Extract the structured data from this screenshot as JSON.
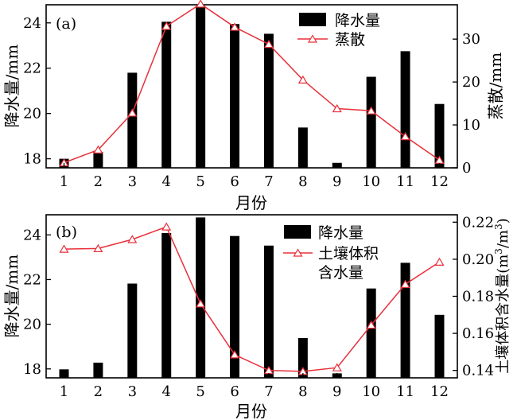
{
  "chart_data": [
    {
      "type": "bar",
      "panel_label": "(a)",
      "categories": [
        "1",
        "2",
        "3",
        "4",
        "5",
        "6",
        "7",
        "8",
        "9",
        "10",
        "11",
        "12"
      ],
      "xlabel": "月份",
      "ylabel": "降水量/mm",
      "ylim": [
        17.6,
        24.8
      ],
      "yticks": [
        "18",
        "20",
        "22",
        "24"
      ],
      "y2label": "蒸散/mm",
      "y2lim": [
        0,
        38
      ],
      "y2ticks": [
        "0",
        "10",
        "20",
        "30"
      ],
      "series": [
        {
          "name": "降水量",
          "kind": "bar",
          "axis": "left",
          "color": "#000000",
          "values": [
            18.0,
            18.3,
            21.8,
            24.05,
            24.75,
            23.95,
            23.52,
            19.38,
            17.82,
            21.62,
            22.75,
            20.42
          ]
        },
        {
          "name": "蒸散",
          "kind": "line",
          "axis": "right",
          "color": "#e8303a",
          "marker": "open-triangle",
          "values": [
            1.2,
            4.2,
            12.8,
            33.0,
            38.2,
            32.8,
            28.8,
            20.5,
            13.8,
            13.3,
            7.3,
            1.8
          ]
        }
      ],
      "legend_position": "top-right",
      "grid": false
    },
    {
      "type": "bar",
      "panel_label": "(b)",
      "categories": [
        "1",
        "2",
        "3",
        "4",
        "5",
        "6",
        "7",
        "8",
        "9",
        "10",
        "11",
        "12"
      ],
      "xlabel": "月份",
      "ylabel": "降水量/mm",
      "ylim": [
        17.6,
        24.9
      ],
      "yticks": [
        "18",
        "20",
        "22",
        "24"
      ],
      "y2label_main": "土壤体积含水量",
      "y2label_unit": "(m",
      "y2label_sup1": "3",
      "y2label_mid": "/m",
      "y2label_sup2": "3",
      "y2label_end": ")",
      "y2lim": [
        0.136,
        0.224
      ],
      "y2ticks": [
        "0.14",
        "0.16",
        "0.18",
        "0.20",
        "0.22"
      ],
      "series": [
        {
          "name": "降水量",
          "kind": "bar",
          "axis": "left",
          "color": "#000000",
          "values": [
            17.98,
            18.28,
            21.82,
            24.08,
            24.78,
            23.95,
            23.52,
            19.38,
            17.8,
            21.6,
            22.75,
            20.42
          ]
        },
        {
          "name_line1": "土壤体积",
          "name_line2": "含水量",
          "kind": "line",
          "axis": "right",
          "color": "#e8303a",
          "marker": "open-triangle",
          "values": [
            0.2055,
            0.2058,
            0.2107,
            0.2175,
            0.176,
            0.1485,
            0.14,
            0.1395,
            0.1415,
            0.1645,
            0.1865,
            0.1985
          ]
        }
      ],
      "legend_position": "top-right",
      "grid": false
    }
  ]
}
